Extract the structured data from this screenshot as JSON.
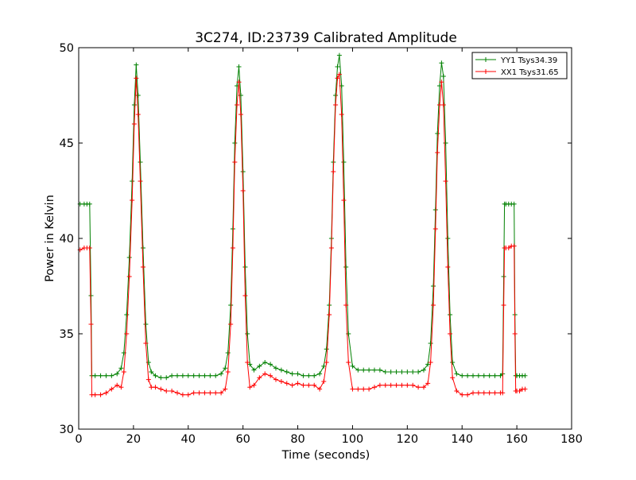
{
  "chart_data": {
    "type": "line",
    "title": "3C274, ID:23739 Calibrated Amplitude",
    "xlabel": "Time (seconds)",
    "ylabel": "Power in Kelvin",
    "xlim": [
      0,
      180
    ],
    "ylim": [
      30,
      50
    ],
    "xticks": [
      0,
      20,
      40,
      60,
      80,
      100,
      120,
      140,
      160,
      180
    ],
    "yticks": [
      30,
      35,
      40,
      45,
      50
    ],
    "grid": false,
    "legend_position": "top-right",
    "marker": "+",
    "series": [
      {
        "name": "YY1 Tsys34.39",
        "color": "#008000",
        "x": [
          0.5,
          2,
          3,
          4,
          4.5,
          4.8,
          6,
          8,
          10,
          12,
          14,
          15.5,
          16.5,
          17.5,
          18.5,
          19.5,
          20.3,
          21,
          21.7,
          22.5,
          23.5,
          24.5,
          25.5,
          26.5,
          28,
          30,
          32,
          34,
          36,
          38,
          40,
          42,
          44,
          46,
          48,
          50,
          52,
          53.5,
          54.5,
          55.5,
          56.3,
          57,
          57.8,
          58.5,
          59.2,
          60,
          60.8,
          61.6,
          62.5,
          64,
          66,
          68,
          70,
          72,
          74,
          76,
          78,
          80,
          82,
          84,
          86,
          88,
          89.5,
          90.5,
          91.5,
          92.3,
          93,
          93.8,
          94.5,
          95.2,
          96,
          96.8,
          97.6,
          98.5,
          100,
          102,
          104,
          106,
          108,
          110,
          112,
          114,
          116,
          118,
          120,
          122,
          124,
          126,
          127.5,
          128.5,
          129.5,
          130.3,
          131,
          131.8,
          132.5,
          133.2,
          134,
          134.8,
          135.6,
          136.5,
          138,
          140,
          142,
          144,
          146,
          148,
          150,
          152,
          154,
          154.8,
          155.2,
          155.5,
          156,
          157,
          158,
          159,
          159.3,
          159.6,
          160,
          161,
          162,
          163
        ],
        "values": [
          41.8,
          41.8,
          41.8,
          41.8,
          37,
          32.8,
          32.8,
          32.8,
          32.8,
          32.8,
          32.9,
          33.2,
          34.0,
          36.0,
          39.0,
          43.0,
          47.0,
          49.1,
          47.5,
          44.0,
          39.5,
          35.5,
          33.5,
          33.0,
          32.8,
          32.7,
          32.7,
          32.8,
          32.8,
          32.8,
          32.8,
          32.8,
          32.8,
          32.8,
          32.8,
          32.8,
          32.9,
          33.2,
          34.0,
          36.5,
          40.5,
          45.0,
          48.0,
          49.0,
          47.5,
          43.5,
          38.5,
          35.0,
          33.4,
          33.1,
          33.3,
          33.5,
          33.4,
          33.2,
          33.1,
          33.0,
          32.9,
          32.9,
          32.8,
          32.8,
          32.8,
          32.9,
          33.3,
          34.2,
          36.5,
          40.0,
          44.0,
          47.5,
          49.0,
          49.6,
          48.0,
          44.0,
          38.5,
          35.0,
          33.3,
          33.1,
          33.1,
          33.1,
          33.1,
          33.1,
          33.0,
          33.0,
          33.0,
          33.0,
          33.0,
          33.0,
          33.0,
          33.1,
          33.4,
          34.5,
          37.5,
          41.5,
          45.5,
          48.0,
          49.2,
          48.5,
          45.0,
          40.0,
          36.0,
          33.5,
          32.9,
          32.8,
          32.8,
          32.8,
          32.8,
          32.8,
          32.8,
          32.8,
          32.8,
          32.9,
          38.0,
          41.8,
          41.8,
          41.8,
          41.8,
          41.8,
          36.0,
          32.8,
          32.8,
          32.8,
          32.8,
          32.8
        ]
      },
      {
        "name": "XX1 Tsys31.65",
        "color": "#ff0000",
        "x": [
          0.5,
          2,
          3,
          4,
          4.5,
          4.8,
          6,
          8,
          10,
          12,
          14,
          15.5,
          16.5,
          17.5,
          18.5,
          19.5,
          20.3,
          21,
          21.7,
          22.5,
          23.5,
          24.5,
          25.5,
          26.5,
          28,
          30,
          32,
          34,
          36,
          38,
          40,
          42,
          44,
          46,
          48,
          50,
          52,
          53.5,
          54.5,
          55.5,
          56.3,
          57,
          57.8,
          58.5,
          59.2,
          60,
          60.8,
          61.6,
          62.5,
          64,
          66,
          68,
          70,
          72,
          74,
          76,
          78,
          80,
          82,
          84,
          86,
          88,
          89.5,
          90.5,
          91.5,
          92.3,
          93,
          93.8,
          94.5,
          95.2,
          96,
          96.8,
          97.6,
          98.5,
          100,
          102,
          104,
          106,
          108,
          110,
          112,
          114,
          116,
          118,
          120,
          122,
          124,
          126,
          127.5,
          128.5,
          129.5,
          130.3,
          131,
          131.8,
          132.5,
          133.2,
          134,
          134.8,
          135.6,
          136.5,
          138,
          140,
          142,
          144,
          146,
          148,
          150,
          152,
          154,
          154.8,
          155.2,
          155.5,
          156,
          157,
          158,
          159,
          159.3,
          159.6,
          160,
          161,
          162,
          163
        ],
        "values": [
          39.4,
          39.5,
          39.5,
          39.5,
          35.5,
          31.8,
          31.8,
          31.8,
          31.9,
          32.1,
          32.3,
          32.2,
          33.0,
          35.0,
          38.0,
          42.0,
          46.0,
          48.4,
          46.5,
          43.0,
          38.5,
          34.5,
          32.6,
          32.2,
          32.2,
          32.1,
          32.0,
          32.0,
          31.9,
          31.8,
          31.8,
          31.9,
          31.9,
          31.9,
          31.9,
          31.9,
          31.9,
          32.1,
          33.0,
          35.5,
          39.5,
          44.0,
          47.0,
          48.2,
          46.5,
          42.5,
          37.0,
          33.5,
          32.2,
          32.3,
          32.7,
          32.9,
          32.8,
          32.6,
          32.5,
          32.4,
          32.3,
          32.4,
          32.3,
          32.3,
          32.3,
          32.1,
          32.5,
          33.5,
          36.0,
          39.5,
          43.5,
          47.0,
          48.4,
          48.6,
          46.5,
          42.0,
          36.5,
          33.5,
          32.1,
          32.1,
          32.1,
          32.1,
          32.2,
          32.3,
          32.3,
          32.3,
          32.3,
          32.3,
          32.3,
          32.3,
          32.2,
          32.2,
          32.4,
          33.5,
          36.5,
          40.5,
          44.5,
          47.0,
          48.2,
          47.0,
          43.0,
          38.5,
          35.0,
          32.7,
          32.0,
          31.8,
          31.8,
          31.9,
          31.9,
          31.9,
          31.9,
          31.9,
          31.9,
          31.9,
          36.5,
          39.5,
          39.5,
          39.5,
          39.6,
          39.6,
          35.0,
          32.0,
          32.0,
          32.0,
          32.1,
          32.1
        ]
      }
    ]
  }
}
